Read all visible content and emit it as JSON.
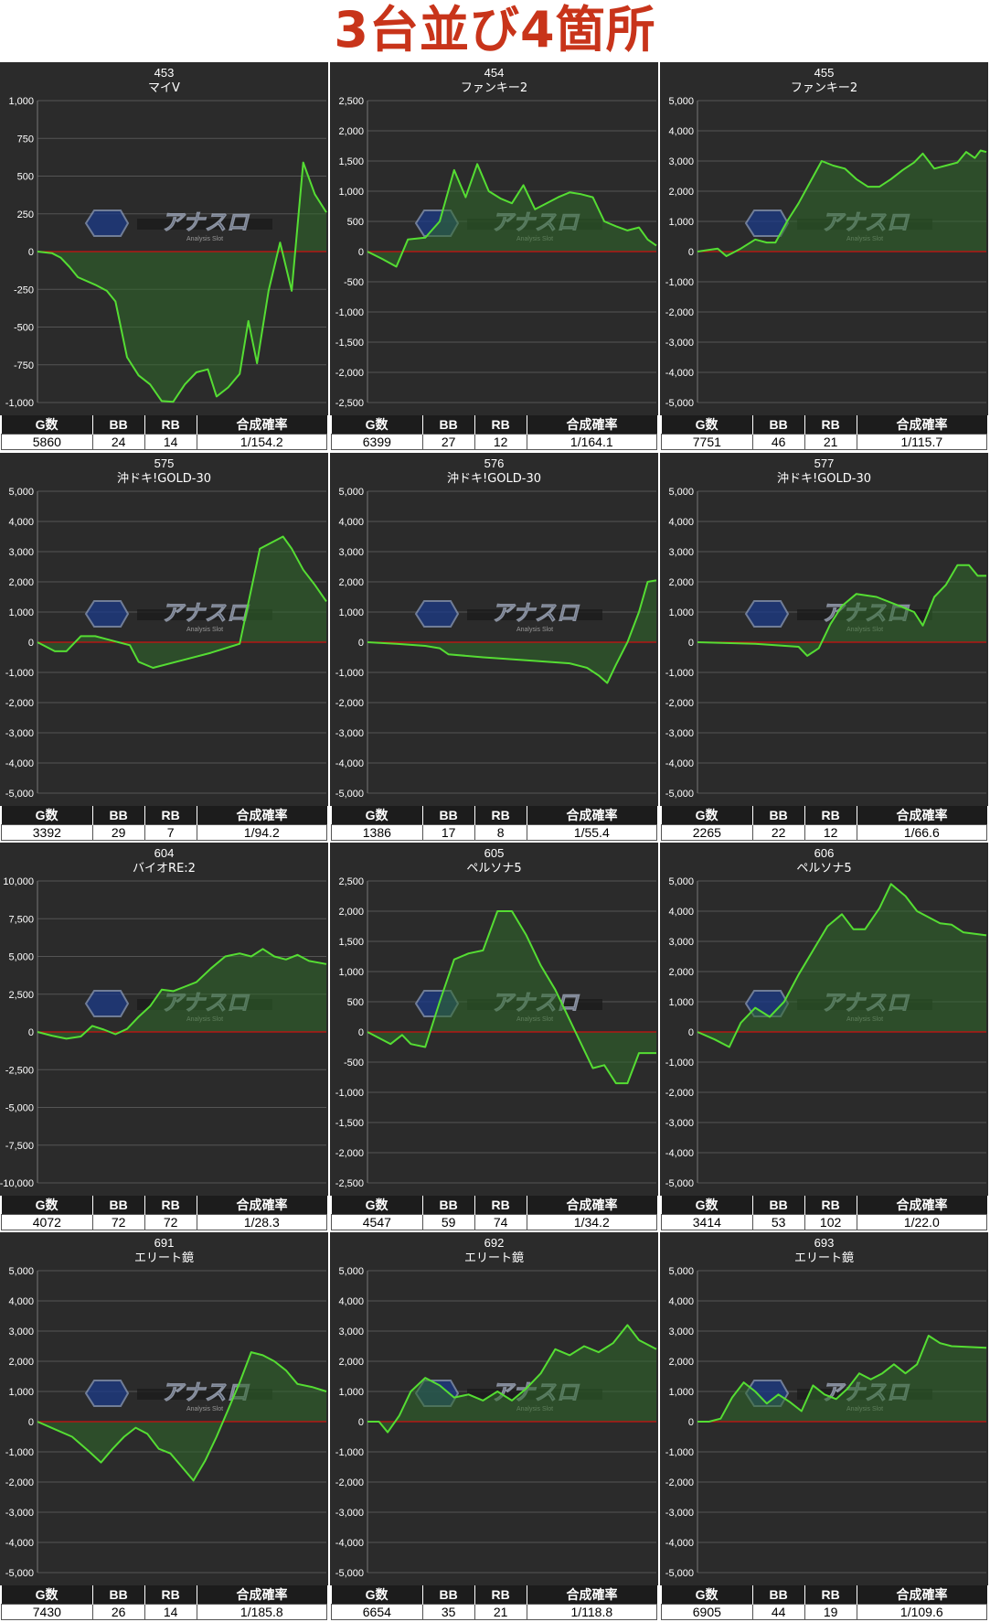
{
  "title": "3台並び4箇所",
  "colors": {
    "line": "#55dd33",
    "fill": "#2f6a2a",
    "zero": "#cc1111",
    "bg": "#2b2b2b",
    "grid": "#555555"
  },
  "watermark": {
    "logo": "アナスロ",
    "sub": "Analysis Slot"
  },
  "stats_headers": [
    "G数",
    "BB",
    "RB",
    "合成確率"
  ],
  "panels": [
    {
      "number": "453",
      "machine": "マイV",
      "ymin": -1000,
      "ymax": 1000,
      "ticks": [
        "1,000",
        "750",
        "500",
        "250",
        "0",
        "-250",
        "-500",
        "-750",
        "-1,000"
      ],
      "games": "5860",
      "bb": "24",
      "rb": "14",
      "rate": "1/154.2",
      "points": [
        [
          0,
          0
        ],
        [
          0.05,
          -10
        ],
        [
          0.08,
          -40
        ],
        [
          0.11,
          -100
        ],
        [
          0.14,
          -170
        ],
        [
          0.2,
          -220
        ],
        [
          0.24,
          -260
        ],
        [
          0.27,
          -330
        ],
        [
          0.31,
          -700
        ],
        [
          0.35,
          -820
        ],
        [
          0.39,
          -880
        ],
        [
          0.43,
          -990
        ],
        [
          0.47,
          -995
        ],
        [
          0.51,
          -880
        ],
        [
          0.55,
          -800
        ],
        [
          0.59,
          -780
        ],
        [
          0.62,
          -960
        ],
        [
          0.66,
          -900
        ],
        [
          0.7,
          -810
        ],
        [
          0.73,
          -460
        ],
        [
          0.76,
          -740
        ],
        [
          0.8,
          -260
        ],
        [
          0.84,
          60
        ],
        [
          0.88,
          -260
        ],
        [
          0.92,
          590
        ],
        [
          0.96,
          380
        ],
        [
          1.0,
          260
        ]
      ]
    },
    {
      "number": "454",
      "machine": "ファンキー2",
      "ymin": -2500,
      "ymax": 2500,
      "ticks": [
        "2,500",
        "2,000",
        "1,500",
        "1,000",
        "500",
        "0",
        "-500",
        "-1,000",
        "-1,500",
        "-2,000",
        "-2,500"
      ],
      "games": "6399",
      "bb": "27",
      "rb": "12",
      "rate": "1/164.1",
      "points": [
        [
          0,
          0
        ],
        [
          0.05,
          -120
        ],
        [
          0.1,
          -250
        ],
        [
          0.14,
          200
        ],
        [
          0.2,
          230
        ],
        [
          0.25,
          500
        ],
        [
          0.3,
          1350
        ],
        [
          0.34,
          900
        ],
        [
          0.38,
          1450
        ],
        [
          0.42,
          1000
        ],
        [
          0.46,
          880
        ],
        [
          0.5,
          800
        ],
        [
          0.54,
          1100
        ],
        [
          0.58,
          700
        ],
        [
          0.62,
          800
        ],
        [
          0.66,
          900
        ],
        [
          0.7,
          980
        ],
        [
          0.74,
          950
        ],
        [
          0.78,
          900
        ],
        [
          0.82,
          500
        ],
        [
          0.86,
          420
        ],
        [
          0.9,
          350
        ],
        [
          0.94,
          400
        ],
        [
          0.97,
          200
        ],
        [
          1.0,
          100
        ]
      ]
    },
    {
      "number": "455",
      "machine": "ファンキー2",
      "ymin": -5000,
      "ymax": 5000,
      "ticks": [
        "5,000",
        "4,000",
        "3,000",
        "2,000",
        "1,000",
        "0",
        "-1,000",
        "-2,000",
        "-3,000",
        "-4,000",
        "-5,000"
      ],
      "games": "7751",
      "bb": "46",
      "rb": "21",
      "rate": "1/115.7",
      "points": [
        [
          0,
          0
        ],
        [
          0.07,
          100
        ],
        [
          0.1,
          -150
        ],
        [
          0.15,
          100
        ],
        [
          0.2,
          400
        ],
        [
          0.24,
          300
        ],
        [
          0.27,
          300
        ],
        [
          0.31,
          1000
        ],
        [
          0.35,
          1600
        ],
        [
          0.39,
          2300
        ],
        [
          0.43,
          3000
        ],
        [
          0.47,
          2850
        ],
        [
          0.51,
          2750
        ],
        [
          0.55,
          2400
        ],
        [
          0.59,
          2150
        ],
        [
          0.63,
          2150
        ],
        [
          0.67,
          2400
        ],
        [
          0.71,
          2700
        ],
        [
          0.75,
          2950
        ],
        [
          0.78,
          3250
        ],
        [
          0.82,
          2750
        ],
        [
          0.86,
          2850
        ],
        [
          0.9,
          2950
        ],
        [
          0.93,
          3300
        ],
        [
          0.96,
          3100
        ],
        [
          0.98,
          3350
        ],
        [
          1.0,
          3300
        ]
      ]
    },
    {
      "number": "575",
      "machine": "沖ドキ!GOLD-30",
      "ymin": -5000,
      "ymax": 5000,
      "ticks": [
        "5,000",
        "4,000",
        "3,000",
        "2,000",
        "1,000",
        "0",
        "-1,000",
        "-2,000",
        "-3,000",
        "-4,000",
        "-5,000"
      ],
      "games": "3392",
      "bb": "29",
      "rb": "7",
      "rate": "1/94.2",
      "points": [
        [
          0,
          0
        ],
        [
          0.06,
          -300
        ],
        [
          0.1,
          -300
        ],
        [
          0.15,
          200
        ],
        [
          0.2,
          200
        ],
        [
          0.24,
          100
        ],
        [
          0.28,
          0
        ],
        [
          0.32,
          -100
        ],
        [
          0.35,
          -650
        ],
        [
          0.4,
          -850
        ],
        [
          0.5,
          -600
        ],
        [
          0.6,
          -350
        ],
        [
          0.7,
          -50
        ],
        [
          0.77,
          3100
        ],
        [
          0.81,
          3300
        ],
        [
          0.85,
          3500
        ],
        [
          0.88,
          3100
        ],
        [
          0.92,
          2400
        ],
        [
          0.96,
          1900
        ],
        [
          1.0,
          1350
        ]
      ]
    },
    {
      "number": "576",
      "machine": "沖ドキ!GOLD-30",
      "ymin": -5000,
      "ymax": 5000,
      "ticks": [
        "5,000",
        "4,000",
        "3,000",
        "2,000",
        "1,000",
        "0",
        "-1,000",
        "-2,000",
        "-3,000",
        "-4,000",
        "-5,000"
      ],
      "games": "1386",
      "bb": "17",
      "rb": "8",
      "rate": "1/55.4",
      "points": [
        [
          0,
          0
        ],
        [
          0.1,
          -50
        ],
        [
          0.2,
          -120
        ],
        [
          0.25,
          -200
        ],
        [
          0.28,
          -400
        ],
        [
          0.4,
          -500
        ],
        [
          0.55,
          -600
        ],
        [
          0.7,
          -700
        ],
        [
          0.76,
          -850
        ],
        [
          0.8,
          -1100
        ],
        [
          0.83,
          -1350
        ],
        [
          0.86,
          -750
        ],
        [
          0.9,
          0
        ],
        [
          0.94,
          1000
        ],
        [
          0.97,
          2000
        ],
        [
          1.0,
          2050
        ]
      ]
    },
    {
      "number": "577",
      "machine": "沖ドキ!GOLD-30",
      "ymin": -5000,
      "ymax": 5000,
      "ticks": [
        "5,000",
        "4,000",
        "3,000",
        "2,000",
        "1,000",
        "0",
        "-1,000",
        "-2,000",
        "-3,000",
        "-4,000",
        "-5,000"
      ],
      "games": "2265",
      "bb": "22",
      "rb": "12",
      "rate": "1/66.6",
      "points": [
        [
          0,
          0
        ],
        [
          0.2,
          -50
        ],
        [
          0.35,
          -150
        ],
        [
          0.38,
          -450
        ],
        [
          0.42,
          -200
        ],
        [
          0.46,
          600
        ],
        [
          0.5,
          1200
        ],
        [
          0.55,
          1600
        ],
        [
          0.62,
          1500
        ],
        [
          0.7,
          1200
        ],
        [
          0.75,
          1000
        ],
        [
          0.78,
          550
        ],
        [
          0.82,
          1500
        ],
        [
          0.86,
          1900
        ],
        [
          0.9,
          2550
        ],
        [
          0.94,
          2550
        ],
        [
          0.97,
          2200
        ],
        [
          1.0,
          2200
        ]
      ]
    },
    {
      "number": "604",
      "machine": "バイオRE:2",
      "ymin": -10000,
      "ymax": 10000,
      "ticks": [
        "10,000",
        "7,500",
        "5,000",
        "2,500",
        "0",
        "-2,500",
        "-5,000",
        "-7,500",
        "-10,000"
      ],
      "games": "4072",
      "bb": "72",
      "rb": "72",
      "rate": "1/28.3",
      "points": [
        [
          0,
          0
        ],
        [
          0.05,
          -250
        ],
        [
          0.1,
          -450
        ],
        [
          0.15,
          -300
        ],
        [
          0.19,
          400
        ],
        [
          0.23,
          150
        ],
        [
          0.27,
          -150
        ],
        [
          0.31,
          200
        ],
        [
          0.35,
          1000
        ],
        [
          0.39,
          1700
        ],
        [
          0.43,
          2800
        ],
        [
          0.47,
          2700
        ],
        [
          0.51,
          3000
        ],
        [
          0.55,
          3300
        ],
        [
          0.6,
          4200
        ],
        [
          0.65,
          5000
        ],
        [
          0.7,
          5200
        ],
        [
          0.74,
          5000
        ],
        [
          0.78,
          5500
        ],
        [
          0.82,
          5000
        ],
        [
          0.86,
          4800
        ],
        [
          0.9,
          5100
        ],
        [
          0.94,
          4700
        ],
        [
          1.0,
          4500
        ]
      ]
    },
    {
      "number": "605",
      "machine": "ペルソナ5",
      "ymin": -2500,
      "ymax": 2500,
      "ticks": [
        "2,500",
        "2,000",
        "1,500",
        "1,000",
        "500",
        "0",
        "-500",
        "-1,000",
        "-1,500",
        "-2,000",
        "-2,500"
      ],
      "games": "4547",
      "bb": "59",
      "rb": "74",
      "rate": "1/34.2",
      "points": [
        [
          0,
          0
        ],
        [
          0.04,
          -100
        ],
        [
          0.08,
          -200
        ],
        [
          0.12,
          -50
        ],
        [
          0.15,
          -200
        ],
        [
          0.2,
          -250
        ],
        [
          0.25,
          500
        ],
        [
          0.3,
          1200
        ],
        [
          0.35,
          1300
        ],
        [
          0.4,
          1350
        ],
        [
          0.45,
          2000
        ],
        [
          0.5,
          2000
        ],
        [
          0.55,
          1600
        ],
        [
          0.6,
          1100
        ],
        [
          0.65,
          700
        ],
        [
          0.7,
          200
        ],
        [
          0.75,
          -300
        ],
        [
          0.78,
          -600
        ],
        [
          0.82,
          -550
        ],
        [
          0.86,
          -850
        ],
        [
          0.9,
          -850
        ],
        [
          0.94,
          -350
        ],
        [
          0.97,
          -350
        ],
        [
          1.0,
          -350
        ]
      ]
    },
    {
      "number": "606",
      "machine": "ペルソナ5",
      "ymin": -5000,
      "ymax": 5000,
      "ticks": [
        "5,000",
        "4,000",
        "3,000",
        "2,000",
        "1,000",
        "0",
        "-1,000",
        "-2,000",
        "-3,000",
        "-4,000",
        "-5,000"
      ],
      "games": "3414",
      "bb": "53",
      "rb": "102",
      "rate": "1/22.0",
      "points": [
        [
          0,
          0
        ],
        [
          0.06,
          -250
        ],
        [
          0.11,
          -500
        ],
        [
          0.15,
          300
        ],
        [
          0.2,
          800
        ],
        [
          0.25,
          500
        ],
        [
          0.3,
          1000
        ],
        [
          0.35,
          1900
        ],
        [
          0.4,
          2700
        ],
        [
          0.45,
          3500
        ],
        [
          0.5,
          3900
        ],
        [
          0.54,
          3400
        ],
        [
          0.58,
          3400
        ],
        [
          0.63,
          4100
        ],
        [
          0.67,
          4900
        ],
        [
          0.72,
          4500
        ],
        [
          0.76,
          4000
        ],
        [
          0.8,
          3800
        ],
        [
          0.84,
          3600
        ],
        [
          0.88,
          3550
        ],
        [
          0.92,
          3300
        ],
        [
          1.0,
          3200
        ]
      ]
    },
    {
      "number": "691",
      "machine": "エリート鏡",
      "ymin": -5000,
      "ymax": 5000,
      "ticks": [
        "5,000",
        "4,000",
        "3,000",
        "2,000",
        "1,000",
        "0",
        "-1,000",
        "-2,000",
        "-3,000",
        "-4,000",
        "-5,000"
      ],
      "games": "7430",
      "bb": "26",
      "rb": "14",
      "rate": "1/185.8",
      "points": [
        [
          0,
          0
        ],
        [
          0.06,
          -250
        ],
        [
          0.12,
          -500
        ],
        [
          0.18,
          -1000
        ],
        [
          0.22,
          -1350
        ],
        [
          0.26,
          -900
        ],
        [
          0.3,
          -500
        ],
        [
          0.34,
          -200
        ],
        [
          0.38,
          -400
        ],
        [
          0.42,
          -900
        ],
        [
          0.46,
          -1050
        ],
        [
          0.5,
          -1500
        ],
        [
          0.54,
          -1950
        ],
        [
          0.58,
          -1300
        ],
        [
          0.62,
          -500
        ],
        [
          0.66,
          400
        ],
        [
          0.7,
          1300
        ],
        [
          0.74,
          2300
        ],
        [
          0.78,
          2200
        ],
        [
          0.82,
          2000
        ],
        [
          0.86,
          1700
        ],
        [
          0.9,
          1250
        ],
        [
          0.95,
          1150
        ],
        [
          1.0,
          1000
        ]
      ]
    },
    {
      "number": "692",
      "machine": "エリート鏡",
      "ymin": -5000,
      "ymax": 5000,
      "ticks": [
        "5,000",
        "4,000",
        "3,000",
        "2,000",
        "1,000",
        "0",
        "-1,000",
        "-2,000",
        "-3,000",
        "-4,000",
        "-5,000"
      ],
      "games": "6654",
      "bb": "35",
      "rb": "21",
      "rate": "1/118.8",
      "points": [
        [
          0,
          0
        ],
        [
          0.04,
          0
        ],
        [
          0.07,
          -350
        ],
        [
          0.11,
          200
        ],
        [
          0.15,
          1000
        ],
        [
          0.2,
          1450
        ],
        [
          0.25,
          1200
        ],
        [
          0.3,
          800
        ],
        [
          0.35,
          900
        ],
        [
          0.4,
          700
        ],
        [
          0.45,
          1000
        ],
        [
          0.5,
          700
        ],
        [
          0.55,
          1100
        ],
        [
          0.6,
          1600
        ],
        [
          0.65,
          2400
        ],
        [
          0.7,
          2200
        ],
        [
          0.75,
          2500
        ],
        [
          0.8,
          2300
        ],
        [
          0.85,
          2600
        ],
        [
          0.9,
          3200
        ],
        [
          0.94,
          2700
        ],
        [
          1.0,
          2400
        ]
      ]
    },
    {
      "number": "693",
      "machine": "エリート鏡",
      "ymin": -5000,
      "ymax": 5000,
      "ticks": [
        "5,000",
        "4,000",
        "3,000",
        "2,000",
        "1,000",
        "0",
        "-1,000",
        "-2,000",
        "-3,000",
        "-4,000",
        "-5,000"
      ],
      "games": "6905",
      "bb": "44",
      "rb": "19",
      "rate": "1/109.6",
      "points": [
        [
          0,
          0
        ],
        [
          0.04,
          0
        ],
        [
          0.08,
          100
        ],
        [
          0.12,
          800
        ],
        [
          0.16,
          1300
        ],
        [
          0.2,
          1000
        ],
        [
          0.24,
          600
        ],
        [
          0.28,
          900
        ],
        [
          0.32,
          650
        ],
        [
          0.36,
          350
        ],
        [
          0.4,
          1200
        ],
        [
          0.44,
          900
        ],
        [
          0.48,
          750
        ],
        [
          0.52,
          1100
        ],
        [
          0.56,
          1600
        ],
        [
          0.6,
          1400
        ],
        [
          0.64,
          1600
        ],
        [
          0.68,
          1900
        ],
        [
          0.72,
          1600
        ],
        [
          0.76,
          1900
        ],
        [
          0.8,
          2850
        ],
        [
          0.84,
          2600
        ],
        [
          0.88,
          2500
        ],
        [
          1.0,
          2450
        ]
      ]
    }
  ]
}
